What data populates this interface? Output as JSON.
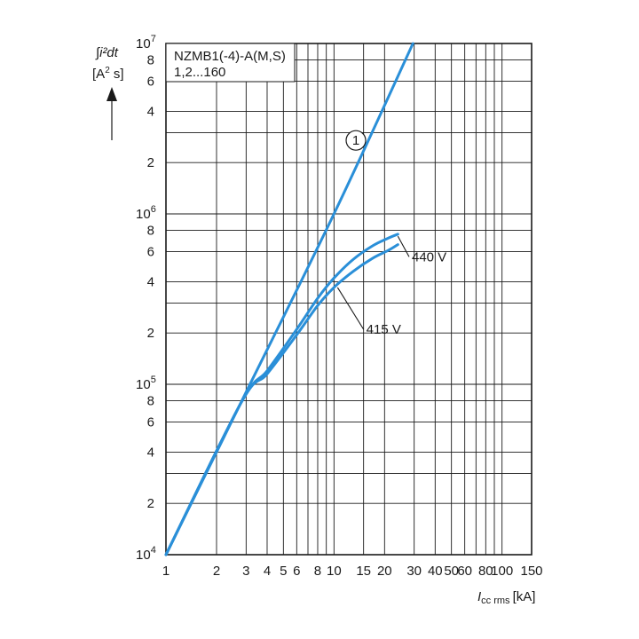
{
  "chart_data": {
    "type": "line",
    "title": "NZMB1(-4)-A(M,S)",
    "subtitle": "1,2...160",
    "xlabel": {
      "symbol": "I",
      "subscript": "cc rms",
      "unit": "[kA]"
    },
    "ylabel": {
      "line1": "∫i²dt",
      "line2_pre": "[A",
      "line2_sup": "2",
      "line2_post": " s]"
    },
    "x_scale": "log",
    "y_scale": "log",
    "xlim": [
      1,
      150
    ],
    "ylim": [
      10000,
      10000000
    ],
    "grid": true,
    "x_ticks": [
      {
        "v": 1,
        "t": "1"
      },
      {
        "v": 2,
        "t": "2"
      },
      {
        "v": 3,
        "t": "3"
      },
      {
        "v": 4,
        "t": "4"
      },
      {
        "v": 5,
        "t": "5"
      },
      {
        "v": 6,
        "t": "6"
      },
      {
        "v": 8,
        "t": "8"
      },
      {
        "v": 10,
        "t": "10"
      },
      {
        "v": 15,
        "t": "15"
      },
      {
        "v": 20,
        "t": "20"
      },
      {
        "v": 30,
        "t": "30"
      },
      {
        "v": 40,
        "t": "40"
      },
      {
        "v": 50,
        "t": "50"
      },
      {
        "v": 60,
        "t": "60"
      },
      {
        "v": 80,
        "t": "80"
      },
      {
        "v": 100,
        "t": "100"
      },
      {
        "v": 150,
        "t": "150"
      }
    ],
    "x_grid": [
      1,
      2,
      3,
      4,
      5,
      6,
      7,
      8,
      9,
      10,
      15,
      20,
      30,
      40,
      50,
      60,
      70,
      80,
      90,
      100,
      150
    ],
    "y_ticks_minor": [
      {
        "v": 20000,
        "t": "2"
      },
      {
        "v": 40000,
        "t": "4"
      },
      {
        "v": 60000,
        "t": "6"
      },
      {
        "v": 80000,
        "t": "8"
      },
      {
        "v": 200000,
        "t": "2"
      },
      {
        "v": 400000,
        "t": "4"
      },
      {
        "v": 600000,
        "t": "6"
      },
      {
        "v": 800000,
        "t": "8"
      },
      {
        "v": 2000000,
        "t": "2"
      },
      {
        "v": 4000000,
        "t": "4"
      },
      {
        "v": 6000000,
        "t": "6"
      },
      {
        "v": 8000000,
        "t": "8"
      }
    ],
    "y_ticks_major": [
      {
        "v": 10000,
        "base": "10",
        "exp": "4"
      },
      {
        "v": 100000,
        "base": "10",
        "exp": "5"
      },
      {
        "v": 1000000,
        "base": "10",
        "exp": "6"
      },
      {
        "v": 10000000,
        "base": "10",
        "exp": "7"
      }
    ],
    "y_grid": [
      10000,
      20000,
      30000,
      40000,
      60000,
      80000,
      100000,
      200000,
      300000,
      400000,
      600000,
      800000,
      1000000,
      2000000,
      3000000,
      4000000,
      6000000,
      8000000,
      10000000
    ],
    "line_color": "#2a8fd8",
    "series": [
      {
        "name": "1",
        "label_style": "circled",
        "label_at": [
          13.5,
          2700000
        ],
        "points": [
          [
            1,
            10000
          ],
          [
            3,
            90000
          ],
          [
            10,
            1000000
          ],
          [
            29.5,
            10000000
          ]
        ]
      },
      {
        "name": "440 V",
        "callout_from": [
          24,
          740000
        ],
        "callout_to": [
          28,
          560000
        ],
        "points": [
          [
            1,
            10000
          ],
          [
            2.8,
            78000
          ],
          [
            4,
            120000
          ],
          [
            6,
            210000
          ],
          [
            8,
            320000
          ],
          [
            10,
            420000
          ],
          [
            13,
            540000
          ],
          [
            17,
            650000
          ],
          [
            21,
            720000
          ],
          [
            24,
            760000
          ]
        ]
      },
      {
        "name": "415 V",
        "callout_from": [
          10.5,
          370000
        ],
        "callout_to": [
          15,
          210000
        ],
        "points": [
          [
            1,
            10000
          ],
          [
            2.8,
            78000
          ],
          [
            4,
            115000
          ],
          [
            6,
            195000
          ],
          [
            8,
            290000
          ],
          [
            10,
            370000
          ],
          [
            13,
            460000
          ],
          [
            17,
            550000
          ],
          [
            21,
            610000
          ],
          [
            24,
            660000
          ]
        ]
      }
    ]
  }
}
